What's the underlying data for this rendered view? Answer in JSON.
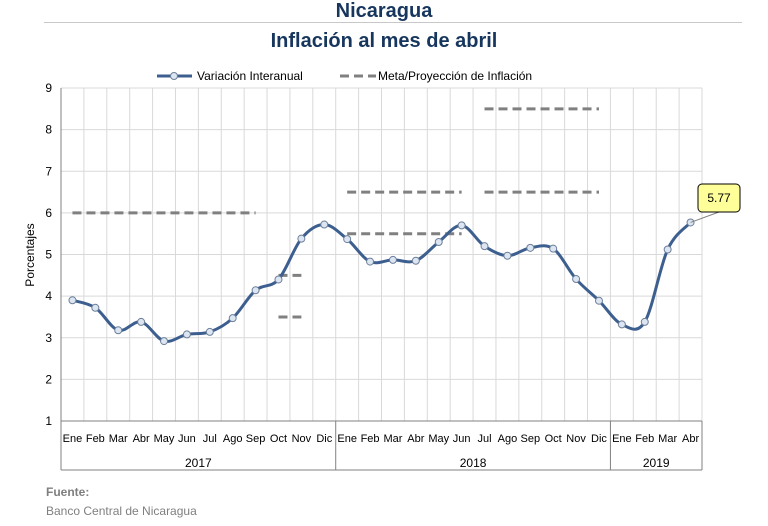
{
  "chart_data": {
    "type": "line",
    "title": "Nicaragua",
    "subtitle": "Inflación al mes de abril",
    "ylabel": "Porcentajes",
    "ylim": [
      1,
      9
    ],
    "yticks": [
      "1",
      "2",
      "3",
      "4",
      "5",
      "6",
      "7",
      "8",
      "9"
    ],
    "grid": true,
    "legend_position": "top",
    "categories": [
      "Ene",
      "Feb",
      "Mar",
      "Abr",
      "May",
      "Jun",
      "Jul",
      "Ago",
      "Sep",
      "Oct",
      "Nov",
      "Dic",
      "Ene",
      "Feb",
      "Mar",
      "Abr",
      "May",
      "Jun",
      "Jul",
      "Ago",
      "Sep",
      "Oct",
      "Nov",
      "Dic",
      "Ene",
      "Feb",
      "Mar",
      "Abr"
    ],
    "year_groups": [
      {
        "label": "2017",
        "count": 12
      },
      {
        "label": "2018",
        "count": 12
      },
      {
        "label": "2019",
        "count": 4
      }
    ],
    "series": [
      {
        "name": "Variación Interanual",
        "color": "#3d5f8f",
        "values": [
          3.9,
          3.72,
          3.18,
          3.38,
          2.92,
          3.08,
          3.14,
          3.47,
          4.14,
          4.4,
          5.38,
          5.72,
          5.37,
          4.83,
          4.87,
          4.85,
          5.3,
          5.7,
          5.2,
          4.97,
          5.16,
          5.14,
          4.41,
          3.89,
          3.32,
          3.38,
          5.12,
          5.77
        ]
      },
      {
        "name": "Meta/Proyección de Inflación",
        "color": "#808080",
        "style": "dashed",
        "segments": [
          {
            "from": 0,
            "to": 8,
            "value": 6.0
          },
          {
            "from": 9,
            "to": 10,
            "value": 4.5
          },
          {
            "from": 9,
            "to": 10,
            "value": 3.5
          },
          {
            "from": 12,
            "to": 17,
            "value": 5.5
          },
          {
            "from": 12,
            "to": 17,
            "value": 6.5
          },
          {
            "from": 18,
            "to": 23,
            "value": 6.5
          },
          {
            "from": 18,
            "to": 23,
            "value": 8.5
          }
        ]
      }
    ],
    "annotation": {
      "label": "5.77",
      "index": 27,
      "fill": "#ffff99"
    }
  },
  "source": {
    "label": "Fuente:",
    "text": "Banco Central de Nicaragua"
  }
}
